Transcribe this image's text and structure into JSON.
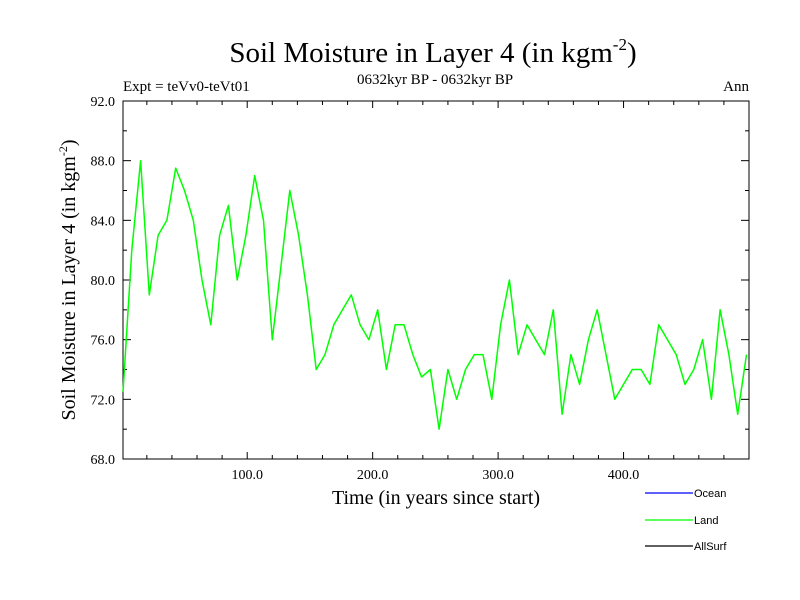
{
  "header": {
    "title_main": "Soil Moisture in Layer 4 (in kgm",
    "title_sup": "-2",
    "title_close": ")",
    "expt": "Expt = teVv0-teVt01",
    "period": "0632kyr BP - 0632kyr BP",
    "season": "Ann"
  },
  "axes": {
    "xlabel": "Time (in years since start)",
    "ylabel_main": "Soil Moisture in Layer 4 (in kgm",
    "ylabel_sup": "-2",
    "ylabel_close": ")"
  },
  "legend": {
    "items": [
      {
        "label": "Ocean",
        "color": "#0000ff"
      },
      {
        "label": "Land",
        "color": "#00ff00"
      },
      {
        "label": "AllSurf",
        "color": "#000000"
      }
    ]
  },
  "chart_data": {
    "type": "line",
    "title": "Soil Moisture in Layer 4 (in kgm-2)",
    "xlabel": "Time (in years since start)",
    "ylabel": "Soil Moisture in Layer 4 (in kgm-2)",
    "xlim": [
      1,
      500
    ],
    "ylim": [
      68,
      92
    ],
    "x_ticks": [
      100,
      200,
      300,
      400
    ],
    "x_tick_labels": [
      "100.0",
      "200.0",
      "300.0",
      "400.0"
    ],
    "y_ticks": [
      68,
      72,
      76,
      80,
      84,
      88,
      92
    ],
    "y_tick_labels": [
      "68.0",
      "72.0",
      "76.0",
      "80.0",
      "84.0",
      "88.0",
      "92.0"
    ],
    "series": [
      {
        "name": "Land",
        "color": "#00ff00",
        "x": [
          1,
          8,
          15,
          22,
          29,
          36,
          43,
          50,
          57,
          64,
          71,
          78,
          85,
          92,
          99,
          106,
          113,
          120,
          127,
          134,
          141,
          148,
          155,
          162,
          169,
          176,
          183,
          190,
          197,
          204,
          211,
          218,
          225,
          232,
          239,
          246,
          253,
          260,
          267,
          274,
          281,
          288,
          295,
          302,
          309,
          316,
          323,
          330,
          337,
          344,
          351,
          358,
          365,
          372,
          379,
          386,
          393,
          400,
          407,
          414,
          421,
          428,
          435,
          442,
          449,
          456,
          463,
          470,
          477,
          484,
          491,
          498
        ],
        "values": [
          72.5,
          82,
          88,
          79,
          83,
          84,
          87.5,
          86,
          84,
          80,
          77,
          83,
          85,
          80,
          83,
          87,
          84,
          76,
          81,
          86,
          83,
          79,
          74,
          75,
          77,
          78,
          79,
          77,
          76,
          78,
          74,
          77,
          77,
          75,
          73.5,
          74,
          70,
          74,
          72,
          74,
          75,
          75,
          72,
          77,
          80,
          75,
          77,
          76,
          75,
          78,
          71,
          75,
          73,
          76,
          78,
          75,
          72,
          73,
          74,
          74,
          73,
          77,
          76,
          75,
          73,
          74,
          76,
          72,
          78,
          75,
          71,
          75
        ]
      }
    ]
  }
}
